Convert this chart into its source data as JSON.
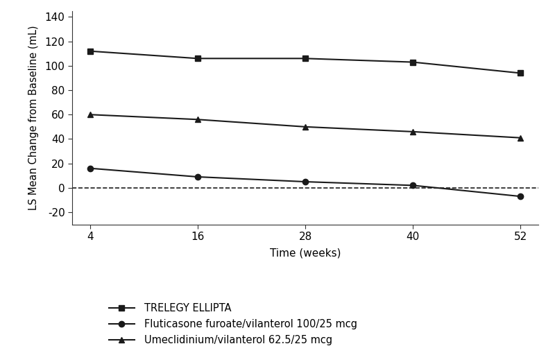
{
  "x": [
    4,
    16,
    28,
    40,
    52
  ],
  "trelegy": [
    112,
    106,
    106,
    103,
    94
  ],
  "fluticasone": [
    16,
    9,
    5,
    2,
    -7
  ],
  "umeclidinium": [
    60,
    56,
    50,
    46,
    41
  ],
  "xlabel": "Time (weeks)",
  "ylabel": "LS Mean Change from Baseline (mL)",
  "ylim": [
    -30,
    145
  ],
  "yticks": [
    -20,
    0,
    20,
    40,
    60,
    80,
    100,
    120,
    140
  ],
  "xticks": [
    4,
    16,
    28,
    40,
    52
  ],
  "line_color": "#1a1a1a",
  "background_color": "#ffffff",
  "legend_labels": [
    "TRELEGY ELLIPTA",
    "Fluticasone furoate/vilanterol 100/25 mcg",
    "Umeclidinium/vilanterol 62.5/25 mcg"
  ],
  "marker_trelegy": "s",
  "marker_fluticasone": "o",
  "marker_umeclidinium": "^",
  "linewidth": 1.5,
  "markersize": 6
}
